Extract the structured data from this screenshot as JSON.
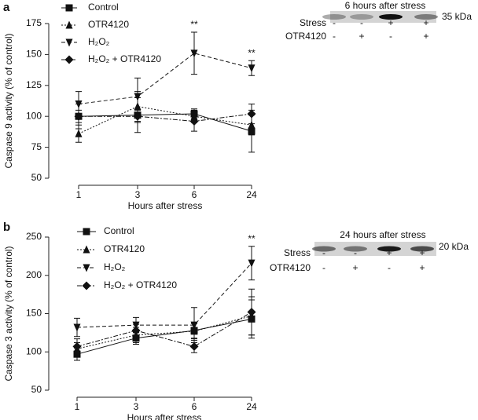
{
  "chart_data": [
    {
      "type": "line",
      "panel": "a",
      "y_label": "Caspase 9 activity (% of control)",
      "x_label": "Hours after stress",
      "categories": [
        "1",
        "3",
        "6",
        "24"
      ],
      "ylim": [
        50,
        175
      ],
      "yticks": [
        50,
        75,
        100,
        125,
        150,
        175
      ],
      "series": [
        {
          "name": "Control",
          "color": "#111111",
          "marker": "square",
          "dash": "solid",
          "values": [
            100,
            101,
            102,
            88
          ],
          "errors": [
            10,
            14,
            4,
            17
          ]
        },
        {
          "name": "OTR4120",
          "color": "#111111",
          "marker": "triangle-up",
          "dash": "dotted",
          "values": [
            86,
            108,
            100,
            93
          ],
          "errors": [
            7,
            12,
            5,
            8
          ]
        },
        {
          "name": "H₂O₂",
          "color": "#111111",
          "marker": "triangle-down",
          "dash": "dashed",
          "values": [
            110,
            116,
            151,
            139
          ],
          "errors": [
            10,
            15,
            17,
            6
          ]
        },
        {
          "name": "H₂O₂ + OTR4120",
          "color": "#111111",
          "marker": "diamond",
          "dash": "dashdot",
          "values": [
            100,
            100,
            96,
            102
          ],
          "errors": [
            5,
            5,
            8,
            8
          ]
        }
      ],
      "annotations": [
        {
          "text": "**",
          "category": 2,
          "series": 2
        },
        {
          "text": "**",
          "category": 3,
          "series": 2
        }
      ],
      "inset": {
        "title": "6  hours after stress",
        "marker": "35 kDa",
        "rows": [
          {
            "label": "Stress",
            "signs": [
              "-",
              "-",
              "+",
              "+"
            ]
          },
          {
            "label": "OTR4120",
            "signs": [
              "-",
              "+",
              "-",
              "+"
            ]
          }
        ]
      }
    },
    {
      "type": "line",
      "panel": "b",
      "y_label": "Caspase 3 activity (% of control)",
      "x_label": "Hours after stress",
      "categories": [
        "1",
        "3",
        "6",
        "24"
      ],
      "ylim": [
        50,
        250
      ],
      "yticks": [
        50,
        100,
        150,
        200,
        250
      ],
      "series": [
        {
          "name": "Control",
          "color": "#111111",
          "marker": "square",
          "dash": "solid",
          "values": [
            97,
            118,
            128,
            143
          ],
          "errors": [
            8,
            8,
            10,
            25
          ]
        },
        {
          "name": "OTR4120",
          "color": "#111111",
          "marker": "triangle-up",
          "dash": "dotted",
          "values": [
            104,
            122,
            127,
            147
          ],
          "errors": [
            8,
            10,
            10,
            25
          ]
        },
        {
          "name": "H₂O₂",
          "color": "#111111",
          "marker": "triangle-down",
          "dash": "dashed",
          "values": [
            132,
            135,
            135,
            216
          ],
          "errors": [
            12,
            10,
            23,
            22
          ]
        },
        {
          "name": "H₂O₂ + OTR4120",
          "color": "#111111",
          "marker": "diamond",
          "dash": "dashdot",
          "values": [
            107,
            128,
            107,
            152
          ],
          "errors": [
            10,
            8,
            8,
            30
          ]
        }
      ],
      "annotations": [
        {
          "text": "**",
          "category": 3,
          "series": 2
        }
      ],
      "inset": {
        "title": "24 hours after stress",
        "marker": "20 kDa",
        "rows": [
          {
            "label": "Stress",
            "signs": [
              "-",
              "-",
              "+",
              "+"
            ]
          },
          {
            "label": "OTR4120",
            "signs": [
              "-",
              "+",
              "-",
              "+"
            ]
          }
        ]
      }
    }
  ]
}
